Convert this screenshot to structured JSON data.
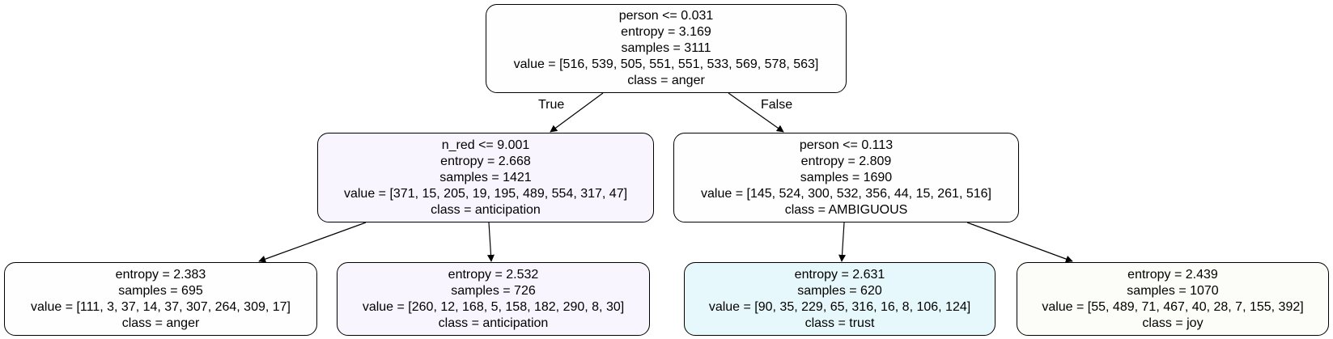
{
  "colors": {
    "root": "#fefeff",
    "left": "#f8f5fe",
    "right": "#fefefe",
    "leaf_anger": "#fefefe",
    "leaf_anticipation": "#f8f5fe",
    "leaf_trust": "#e6f8fb",
    "leaf_joy": "#fcfdf8",
    "edge": "#000000"
  },
  "edges": {
    "true_label": "True",
    "false_label": "False"
  },
  "nodes": {
    "root": {
      "split": "person <= 0.031",
      "entropy": "entropy = 3.169",
      "samples": "samples = 3111",
      "value": "value = [516, 539, 505, 551, 551, 533, 569, 578, 563]",
      "class": "class = anger"
    },
    "left": {
      "split": "n_red <= 9.001",
      "entropy": "entropy = 2.668",
      "samples": "samples = 1421",
      "value": "value = [371, 15, 205, 19, 195, 489, 554, 317, 47]",
      "class": "class = anticipation"
    },
    "right": {
      "split": "person <= 0.113",
      "entropy": "entropy = 2.809",
      "samples": "samples = 1690",
      "value": "value = [145, 524, 300, 532, 356, 44, 15, 261, 516]",
      "class": "class = AMBIGUOUS"
    },
    "leaf1": {
      "entropy": "entropy = 2.383",
      "samples": "samples = 695",
      "value": "value = [111, 3, 37, 14, 37, 307, 264, 309, 17]",
      "class": "class = anger"
    },
    "leaf2": {
      "entropy": "entropy = 2.532",
      "samples": "samples = 726",
      "value": "value = [260, 12, 168, 5, 158, 182, 290, 8, 30]",
      "class": "class = anticipation"
    },
    "leaf3": {
      "entropy": "entropy = 2.631",
      "samples": "samples = 620",
      "value": "value = [90, 35, 229, 65, 316, 16, 8, 106, 124]",
      "class": "class = trust"
    },
    "leaf4": {
      "entropy": "entropy = 2.439",
      "samples": "samples = 1070",
      "value": "value = [55, 489, 71, 467, 40, 28, 7, 155, 392]",
      "class": "class = joy"
    }
  }
}
